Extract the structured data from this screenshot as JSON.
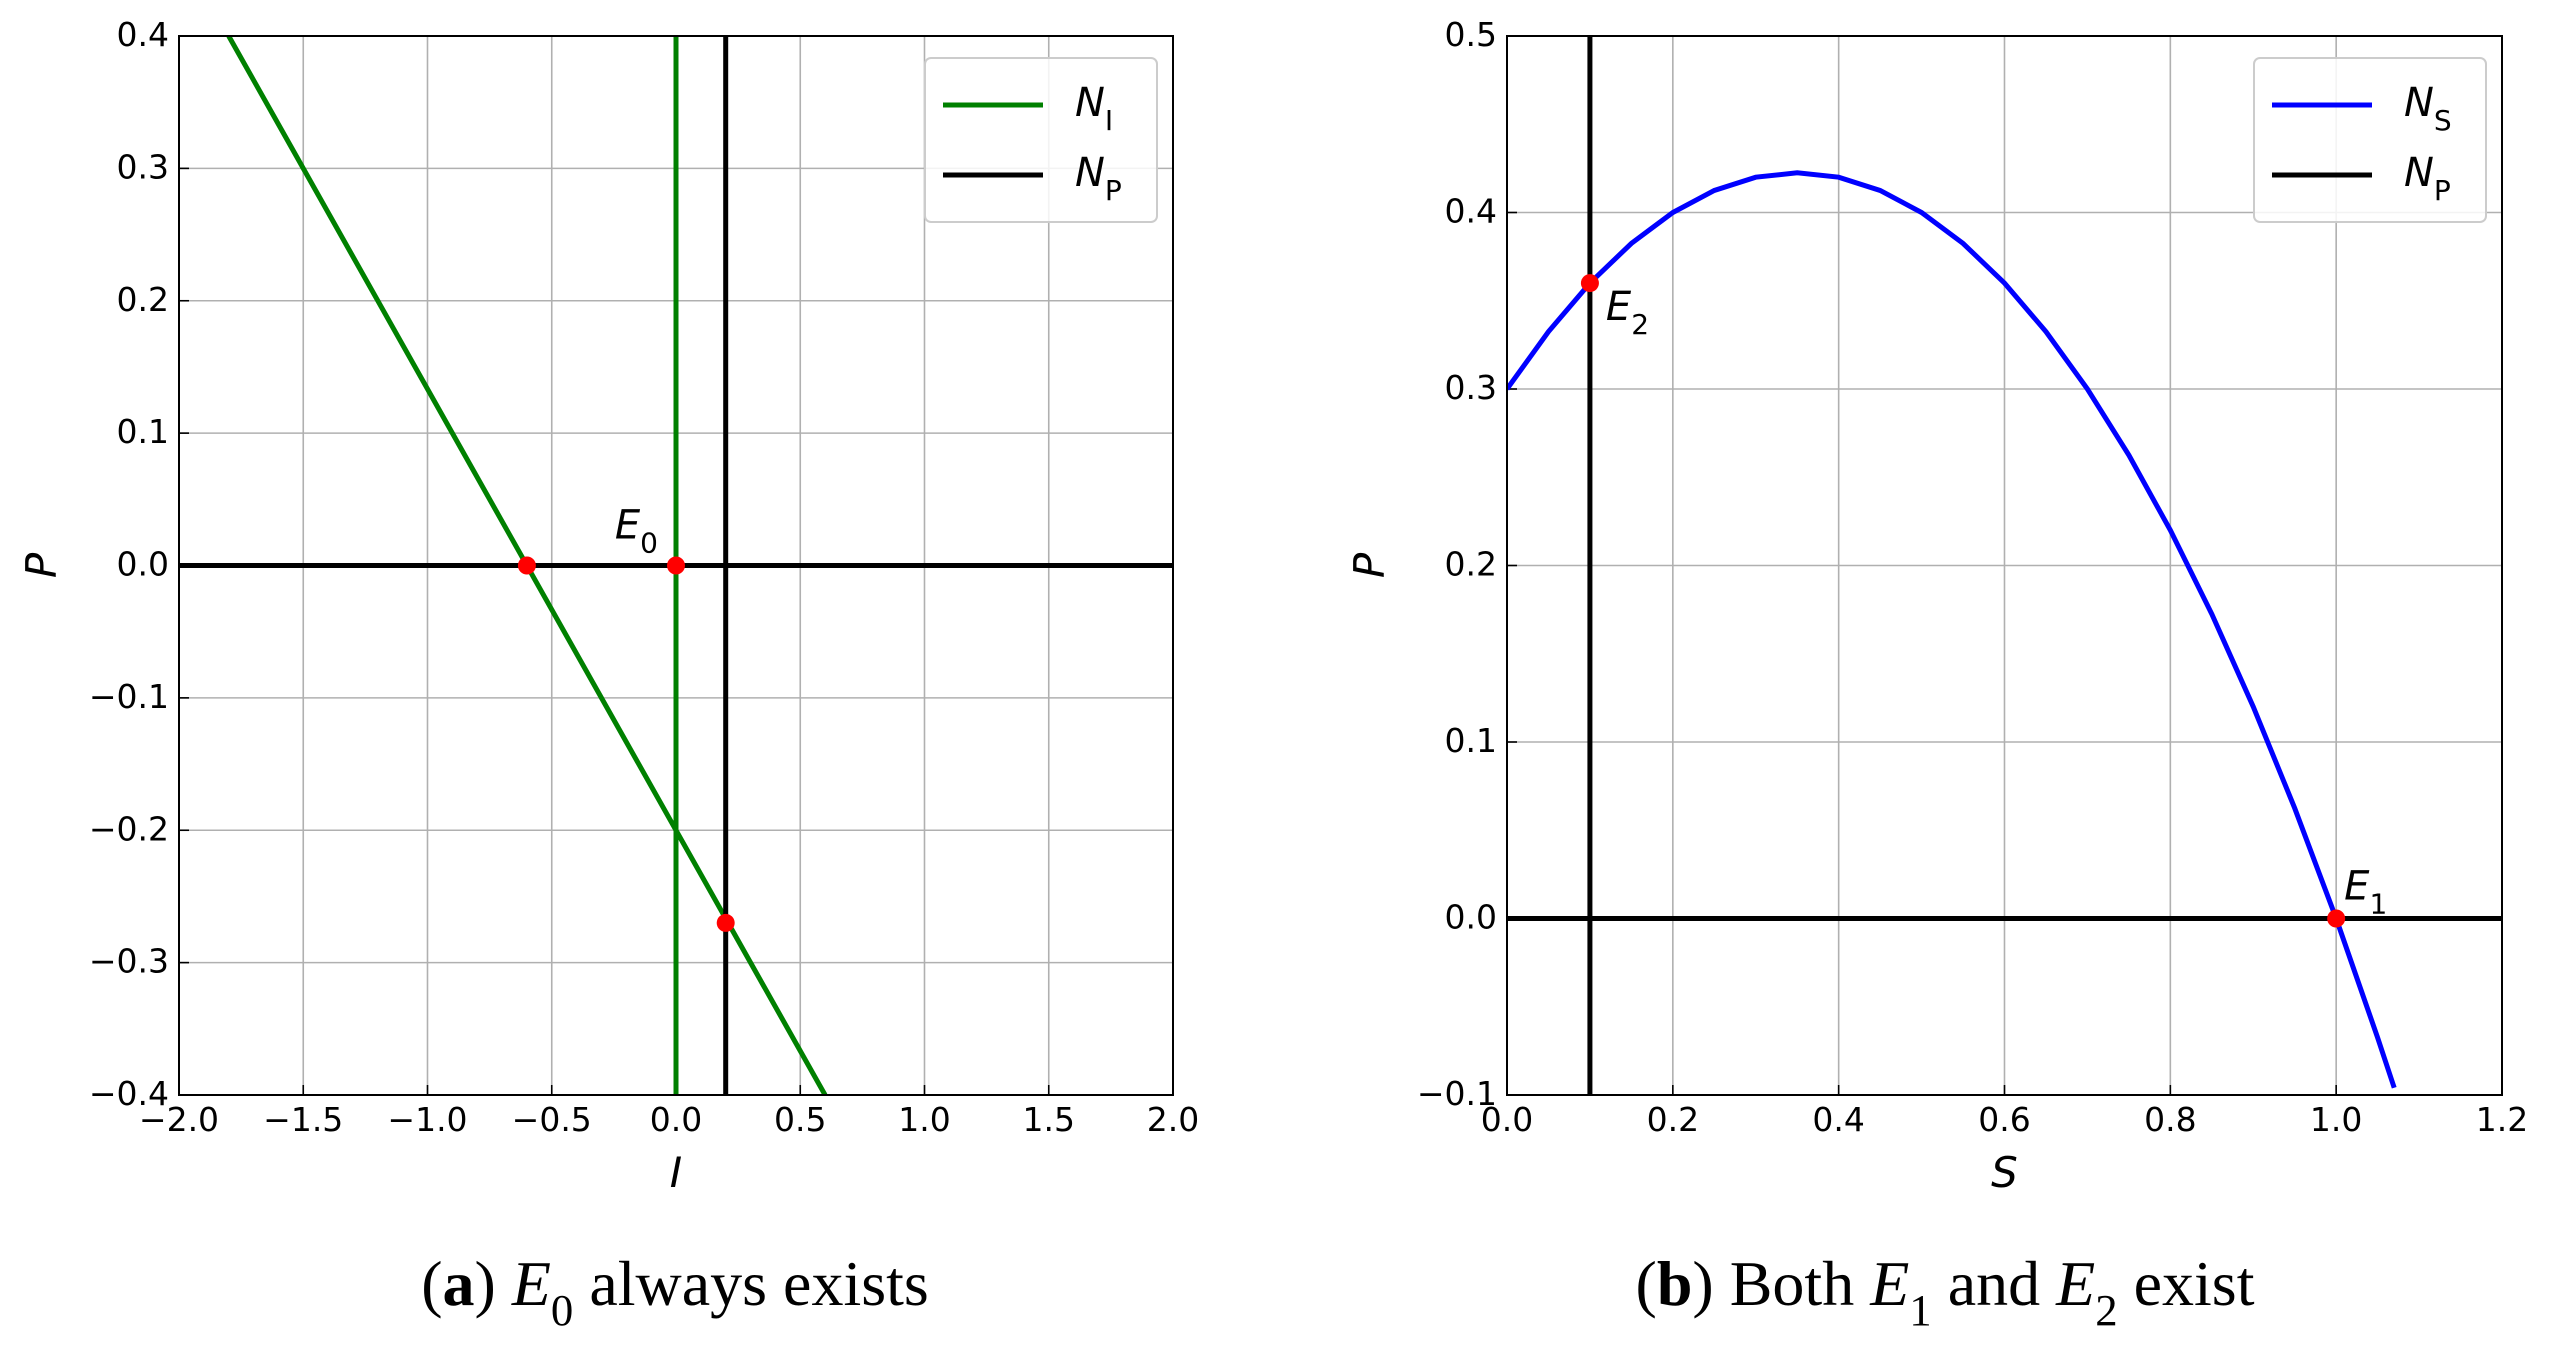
{
  "chart_data": [
    {
      "type": "line",
      "caption": "(a) E_0 always exists",
      "xlabel": "I",
      "ylabel": "P",
      "xlim": [
        -2,
        2
      ],
      "ylim": [
        -0.4,
        0.4
      ],
      "xticks": [
        {
          "value": -2,
          "label": "−2.0"
        },
        {
          "value": -1.5,
          "label": "−1.5"
        },
        {
          "value": -1,
          "label": "−1.0"
        },
        {
          "value": -0.5,
          "label": "−0.5"
        },
        {
          "value": 0,
          "label": "0.0"
        },
        0.5,
        {
          "value": 1,
          "label": "1.0"
        },
        1.5,
        {
          "value": 2,
          "label": "2.0"
        }
      ],
      "yticks": [
        {
          "value": -0.4,
          "label": "−0.4"
        },
        {
          "value": -0.3,
          "label": "−0.3"
        },
        {
          "value": -0.2,
          "label": "−0.2"
        },
        {
          "value": -0.1,
          "label": "−0.1"
        },
        {
          "value": 0,
          "label": "0.0"
        },
        0.1,
        0.2,
        0.3,
        0.4
      ],
      "grid": true,
      "legend": "upper right",
      "series": [
        {
          "name": "N_I",
          "color": "#008000",
          "x": [
            -1.8,
            0.6,
            null,
            0,
            0
          ],
          "values": [
            0.4,
            -0.4,
            null,
            -0.4,
            0.4
          ]
        },
        {
          "name": "N_P",
          "color": "#000000",
          "x": [
            -2,
            2,
            null,
            0.2,
            0.2
          ],
          "values": [
            0,
            0,
            null,
            -0.4,
            0.4
          ]
        }
      ],
      "markers": {
        "color": "#ff0000",
        "x": [
          -0.6,
          0,
          0.2
        ],
        "values": [
          0,
          0,
          -0.27
        ]
      },
      "annotations": [
        {
          "text": "E_0",
          "point": 1,
          "side": "upper left"
        }
      ]
    },
    {
      "type": "line",
      "caption": "(b) Both E_1 and E_2 exist",
      "xlabel": "S",
      "ylabel": "P",
      "xlim": [
        0,
        1.2
      ],
      "ylim": [
        -0.1,
        0.5
      ],
      "xticks": [
        {
          "value": 0,
          "label": "0.0"
        },
        0.2,
        0.4,
        0.6,
        0.8,
        {
          "value": 1,
          "label": "1.0"
        },
        {
          "value": 1.2,
          "label": "1.2"
        }
      ],
      "yticks": [
        {
          "value": -0.1,
          "label": "−0.1"
        },
        {
          "value": 0,
          "label": "0.0"
        },
        0.1,
        0.2,
        0.3,
        0.4,
        0.5
      ],
      "grid": true,
      "legend": "upper right",
      "series": [
        {
          "name": "N_S",
          "color": "#0000ff",
          "x": [
            0,
            0.05,
            0.1,
            0.15,
            0.2,
            0.25,
            0.3,
            0.35,
            0.4,
            0.45,
            0.5,
            0.55,
            0.6,
            0.65,
            0.7,
            0.75,
            0.8,
            0.85,
            0.9,
            0.95,
            1.0,
            1.05,
            1.07
          ],
          "values": [
            0.3,
            0.3325,
            0.36,
            0.3825,
            0.4,
            0.4125,
            0.42,
            0.4225,
            0.42,
            0.4125,
            0.4,
            0.3825,
            0.36,
            0.3325,
            0.3,
            0.2625,
            0.22,
            0.1725,
            0.12,
            0.0625,
            0,
            -0.0675,
            -0.0959
          ]
        },
        {
          "name": "N_P",
          "color": "#000000",
          "x": [
            0,
            1.2,
            null,
            0.1,
            0.1
          ],
          "values": [
            0,
            0,
            null,
            -0.1,
            0.5
          ]
        }
      ],
      "markers": {
        "color": "#ff0000",
        "x": [
          0.1,
          1.0
        ],
        "values": [
          0.36,
          0
        ]
      },
      "annotations": [
        {
          "text": "E_2",
          "point": 0,
          "side": "lower right"
        },
        {
          "text": "E_1",
          "point": 1,
          "side": "upper right"
        }
      ]
    }
  ]
}
